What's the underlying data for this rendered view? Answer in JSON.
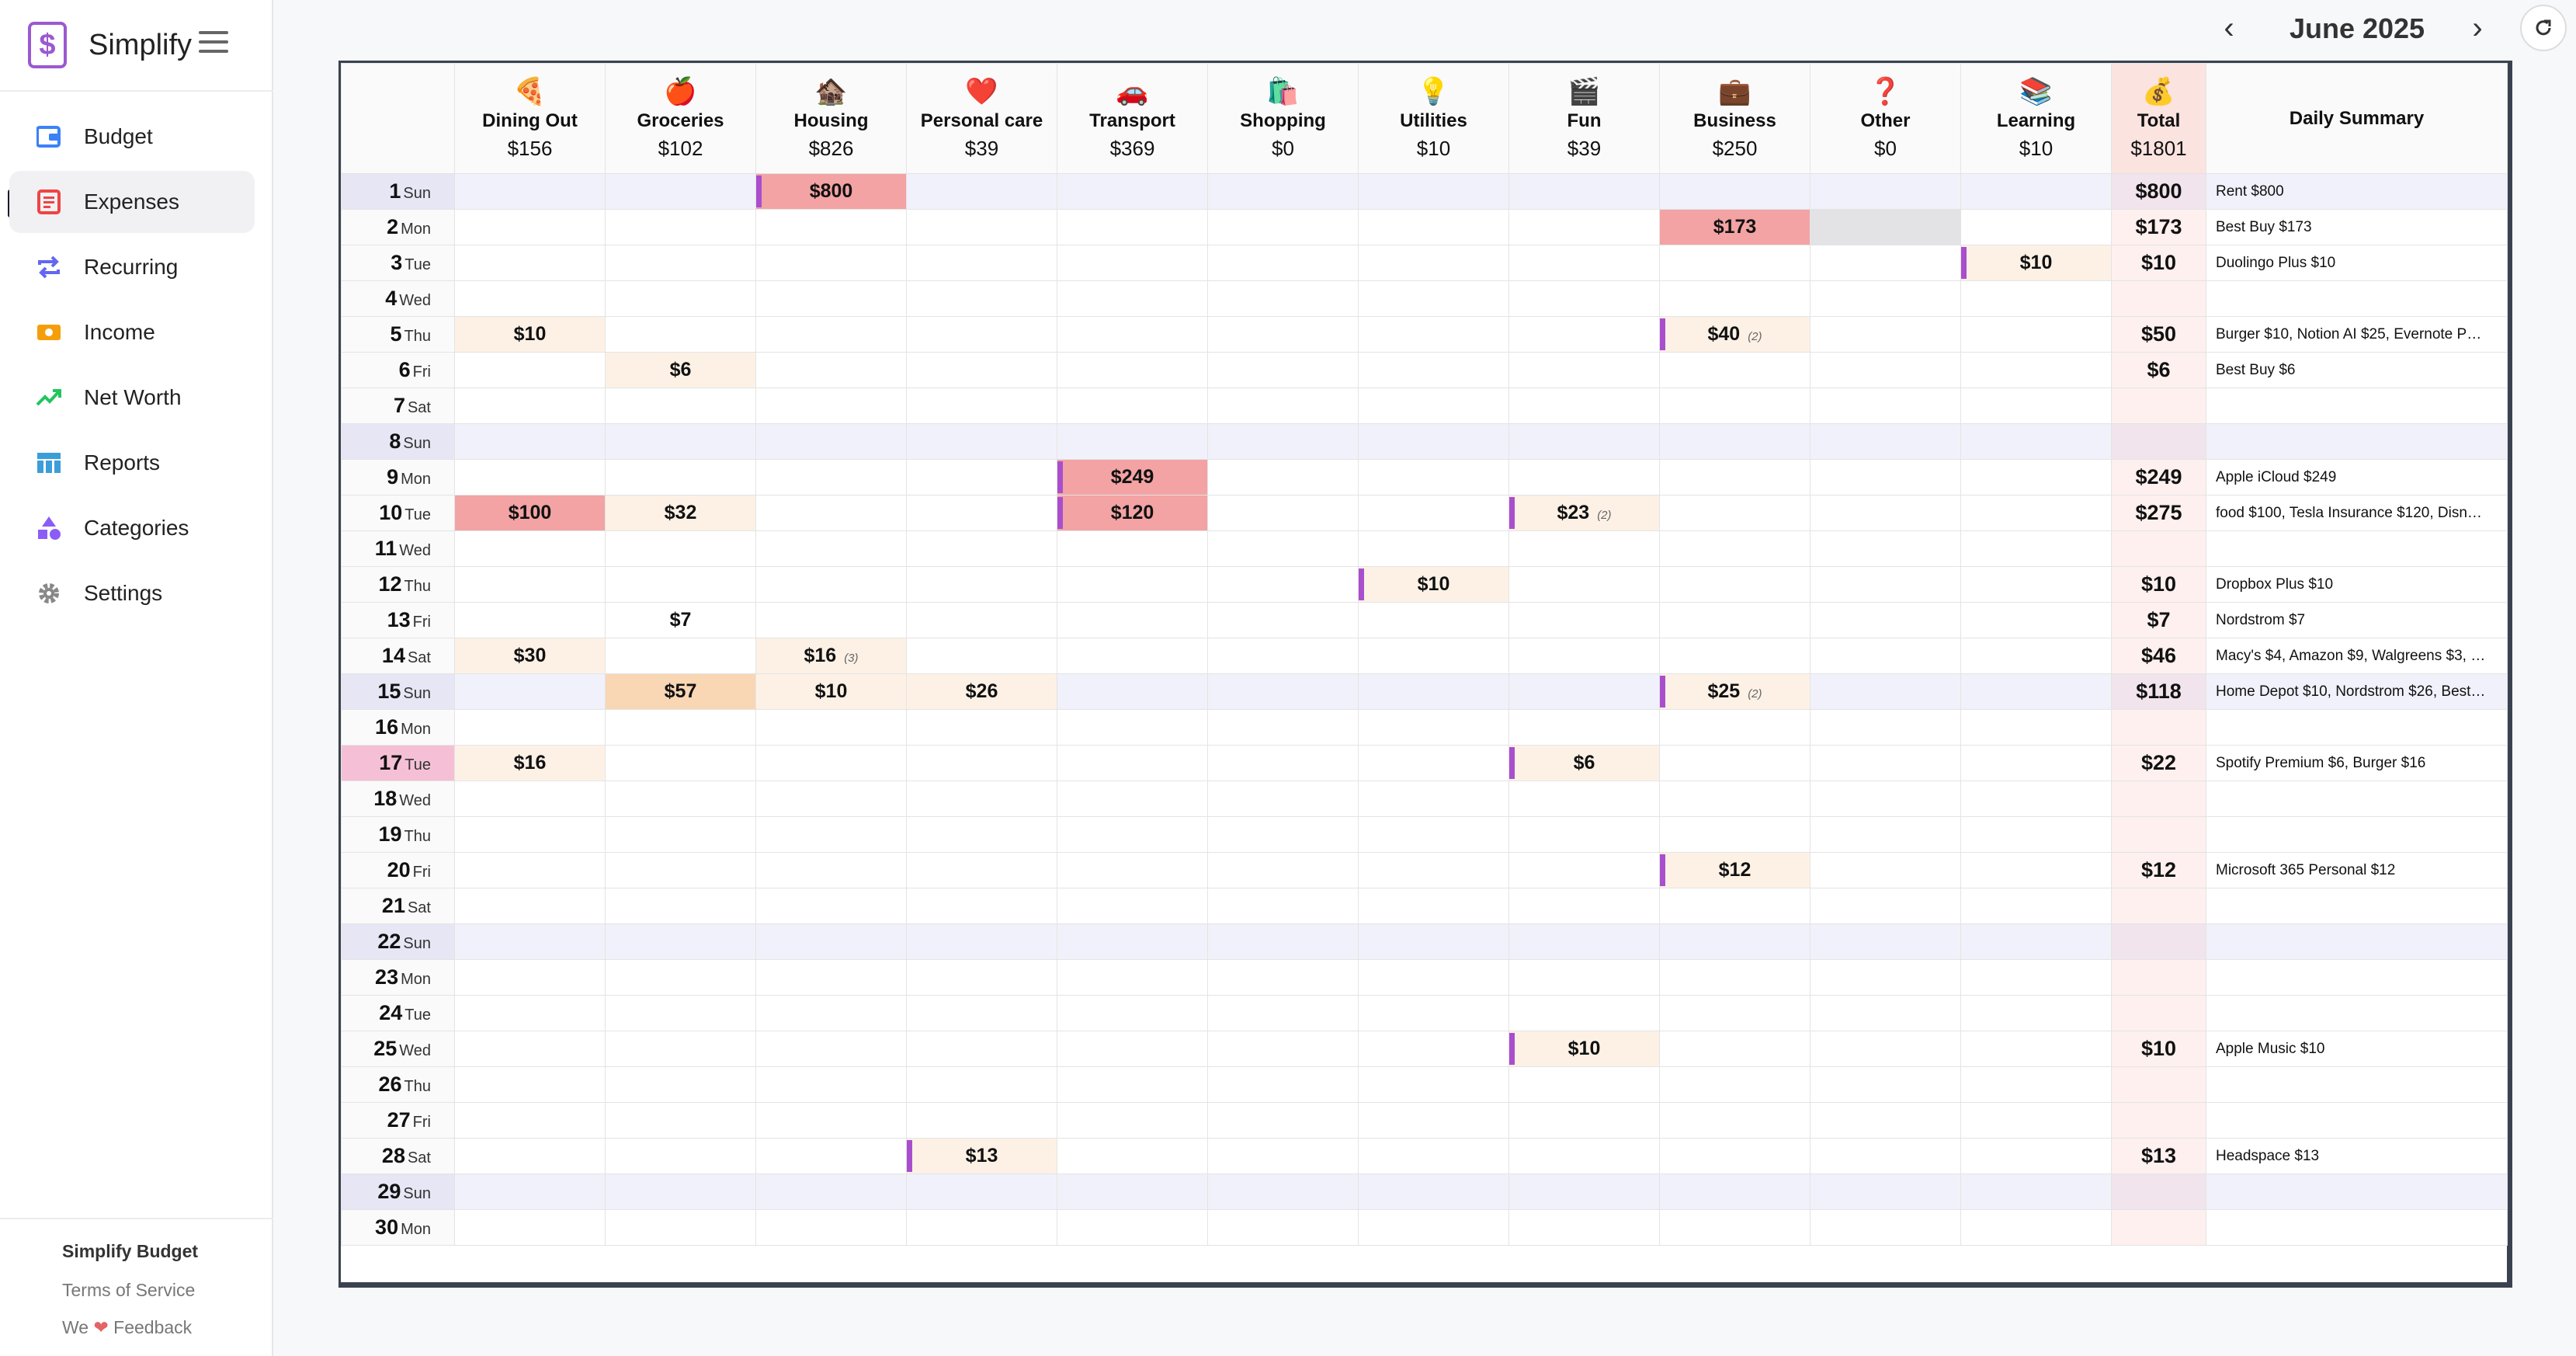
{
  "app": {
    "name": "Simplify",
    "logo_char": "$",
    "footer_title": "Simplify Budget",
    "footer_terms": "Terms of Service",
    "footer_we": "We",
    "footer_feedback": "Feedback"
  },
  "nav": [
    {
      "label": "Budget",
      "icon": "wallet-icon",
      "color": "#3b82f6",
      "active": false
    },
    {
      "label": "Expenses",
      "icon": "receipt-icon",
      "color": "#ef4444",
      "active": true
    },
    {
      "label": "Recurring",
      "icon": "repeat-icon",
      "color": "#6366f1",
      "active": false
    },
    {
      "label": "Income",
      "icon": "cash-icon",
      "color": "#f59e0b",
      "active": false
    },
    {
      "label": "Net Worth",
      "icon": "trend-up-icon",
      "color": "#22c55e",
      "active": false
    },
    {
      "label": "Reports",
      "icon": "table-icon",
      "color": "#3b9ed8",
      "active": false
    },
    {
      "label": "Categories",
      "icon": "shapes-icon",
      "color": "#8b5cf6",
      "active": false
    },
    {
      "label": "Settings",
      "icon": "gear-icon",
      "color": "#888888",
      "active": false
    }
  ],
  "header": {
    "month": "June 2025"
  },
  "categories": [
    {
      "icon": "🍕",
      "name": "Dining Out",
      "total": "$156"
    },
    {
      "icon": "🍎",
      "name": "Groceries",
      "total": "$102"
    },
    {
      "icon": "🏚️",
      "name": "Housing",
      "total": "$826"
    },
    {
      "icon": "❤️",
      "name": "Personal care",
      "total": "$39"
    },
    {
      "icon": "🚗",
      "name": "Transport",
      "total": "$369"
    },
    {
      "icon": "🛍️",
      "name": "Shopping",
      "total": "$0"
    },
    {
      "icon": "💡",
      "name": "Utilities",
      "total": "$10"
    },
    {
      "icon": "🎬",
      "name": "Fun",
      "total": "$39"
    },
    {
      "icon": "💼",
      "name": "Business",
      "total": "$250"
    },
    {
      "icon": "❓",
      "name": "Other",
      "total": "$0"
    },
    {
      "icon": "📚",
      "name": "Learning",
      "total": "$10"
    }
  ],
  "total_column": {
    "icon": "💰",
    "name": "Total",
    "total": "$1801"
  },
  "summary_header": "Daily Summary",
  "days": [
    {
      "num": "1",
      "name": "Sun",
      "total": "$800",
      "summary": "Rent $800",
      "entries": {
        "2": {
          "amount": "$800",
          "level": 3,
          "recurring": true
        }
      }
    },
    {
      "num": "2",
      "name": "Mon",
      "total": "$173",
      "summary": "Best Buy $173",
      "entries": {
        "8": {
          "amount": "$173",
          "level": 3
        },
        "9": {
          "amount": "",
          "level": 4
        }
      }
    },
    {
      "num": "3",
      "name": "Tue",
      "total": "$10",
      "summary": "Duolingo Plus $10",
      "entries": {
        "10": {
          "amount": "$10",
          "level": 1,
          "recurring": true
        }
      }
    },
    {
      "num": "4",
      "name": "Wed",
      "total": "",
      "summary": "",
      "entries": {}
    },
    {
      "num": "5",
      "name": "Thu",
      "total": "$50",
      "summary": "Burger $10, Notion AI $25, Evernote P…",
      "entries": {
        "0": {
          "amount": "$10",
          "level": 1
        },
        "8": {
          "amount": "$40",
          "count": "(2)",
          "level": 1,
          "recurring": true
        }
      }
    },
    {
      "num": "6",
      "name": "Fri",
      "total": "$6",
      "summary": "Best Buy $6",
      "entries": {
        "1": {
          "amount": "$6",
          "level": 1
        }
      }
    },
    {
      "num": "7",
      "name": "Sat",
      "total": "",
      "summary": "",
      "entries": {}
    },
    {
      "num": "8",
      "name": "Sun",
      "total": "",
      "summary": "",
      "entries": {}
    },
    {
      "num": "9",
      "name": "Mon",
      "total": "$249",
      "summary": "Apple iCloud $249",
      "entries": {
        "4": {
          "amount": "$249",
          "level": 3,
          "recurring": true
        }
      }
    },
    {
      "num": "10",
      "name": "Tue",
      "total": "$275",
      "summary": "food $100, Tesla Insurance $120, Disn…",
      "entries": {
        "0": {
          "amount": "$100",
          "level": 3
        },
        "1": {
          "amount": "$32",
          "level": 1
        },
        "4": {
          "amount": "$120",
          "level": 3,
          "recurring": true
        },
        "7": {
          "amount": "$23",
          "count": "(2)",
          "level": 1,
          "recurring": true
        }
      }
    },
    {
      "num": "11",
      "name": "Wed",
      "total": "",
      "summary": "",
      "entries": {}
    },
    {
      "num": "12",
      "name": "Thu",
      "total": "$10",
      "summary": "Dropbox Plus $10",
      "entries": {
        "6": {
          "amount": "$10",
          "level": 1,
          "recurring": true
        }
      }
    },
    {
      "num": "13",
      "name": "Fri",
      "total": "$7",
      "summary": "Nordstrom $7",
      "entries": {
        "1": {
          "amount": "$7",
          "level": 0
        }
      }
    },
    {
      "num": "14",
      "name": "Sat",
      "total": "$46",
      "summary": "Macy's $4, Amazon $9, Walgreens $3, …",
      "entries": {
        "0": {
          "amount": "$30",
          "level": 1
        },
        "2": {
          "amount": "$16",
          "count": "(3)",
          "level": 1
        }
      }
    },
    {
      "num": "15",
      "name": "Sun",
      "total": "$118",
      "summary": "Home Depot $10, Nordstrom $26, Best…",
      "entries": {
        "1": {
          "amount": "$57",
          "level": 2
        },
        "2": {
          "amount": "$10",
          "level": 1
        },
        "3": {
          "amount": "$26",
          "level": 1
        },
        "8": {
          "amount": "$25",
          "count": "(2)",
          "level": 1,
          "recurring": true
        }
      }
    },
    {
      "num": "16",
      "name": "Mon",
      "total": "",
      "summary": "",
      "entries": {}
    },
    {
      "num": "17",
      "name": "Tue",
      "total": "$22",
      "summary": "Spotify Premium $6, Burger $16",
      "today": true,
      "entries": {
        "0": {
          "amount": "$16",
          "level": 1
        },
        "7": {
          "amount": "$6",
          "level": 1,
          "recurring": true
        }
      }
    },
    {
      "num": "18",
      "name": "Wed",
      "total": "",
      "summary": "",
      "entries": {}
    },
    {
      "num": "19",
      "name": "Thu",
      "total": "",
      "summary": "",
      "entries": {}
    },
    {
      "num": "20",
      "name": "Fri",
      "total": "$12",
      "summary": "Microsoft 365 Personal $12",
      "entries": {
        "8": {
          "amount": "$12",
          "level": 1,
          "recurring": true
        }
      }
    },
    {
      "num": "21",
      "name": "Sat",
      "total": "",
      "summary": "",
      "entries": {}
    },
    {
      "num": "22",
      "name": "Sun",
      "total": "",
      "summary": "",
      "entries": {}
    },
    {
      "num": "23",
      "name": "Mon",
      "total": "",
      "summary": "",
      "entries": {}
    },
    {
      "num": "24",
      "name": "Tue",
      "total": "",
      "summary": "",
      "entries": {}
    },
    {
      "num": "25",
      "name": "Wed",
      "total": "$10",
      "summary": "Apple Music $10",
      "entries": {
        "7": {
          "amount": "$10",
          "level": 1,
          "recurring": true
        }
      }
    },
    {
      "num": "26",
      "name": "Thu",
      "total": "",
      "summary": "",
      "entries": {}
    },
    {
      "num": "27",
      "name": "Fri",
      "total": "",
      "summary": "",
      "entries": {}
    },
    {
      "num": "28",
      "name": "Sat",
      "total": "$13",
      "summary": "Headspace $13",
      "entries": {
        "3": {
          "amount": "$13",
          "level": 1,
          "recurring": true
        }
      }
    },
    {
      "num": "29",
      "name": "Sun",
      "total": "",
      "summary": "",
      "entries": {}
    },
    {
      "num": "30",
      "name": "Mon",
      "total": "",
      "summary": "",
      "entries": {}
    }
  ]
}
